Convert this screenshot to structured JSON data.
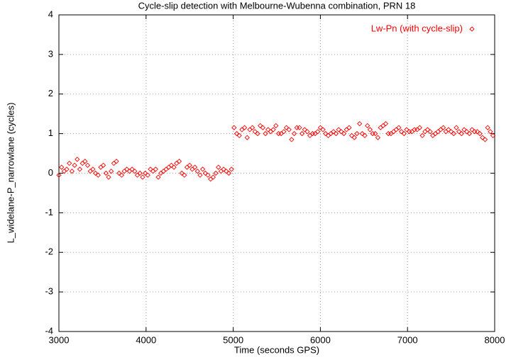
{
  "chart_data": {
    "type": "scatter",
    "title": "Cycle-slip detection with Melbourne-Wubenna combination, PRN 18",
    "xlabel": "Time (seconds GPS)",
    "ylabel": "L_widelane-P_narrowlane (cycles)",
    "x": [
      3000,
      3030,
      3060,
      3090,
      3120,
      3150,
      3180,
      3210,
      3240,
      3270,
      3300,
      3330,
      3360,
      3390,
      3420,
      3450,
      3480,
      3510,
      3540,
      3570,
      3600,
      3630,
      3660,
      3690,
      3720,
      3750,
      3780,
      3810,
      3840,
      3870,
      3900,
      3930,
      3960,
      3990,
      4020,
      4050,
      4080,
      4110,
      4140,
      4170,
      4200,
      4230,
      4260,
      4290,
      4320,
      4350,
      4380,
      4410,
      4440,
      4470,
      4500,
      4530,
      4560,
      4590,
      4620,
      4650,
      4680,
      4710,
      4740,
      4770,
      4800,
      4830,
      4860,
      4890,
      4920,
      4950,
      4980,
      5010,
      5040,
      5070,
      5100,
      5130,
      5160,
      5190,
      5220,
      5250,
      5280,
      5310,
      5340,
      5370,
      5400,
      5430,
      5460,
      5490,
      5520,
      5550,
      5580,
      5610,
      5640,
      5670,
      5700,
      5730,
      5760,
      5790,
      5820,
      5850,
      5880,
      5910,
      5940,
      5970,
      6000,
      6030,
      6060,
      6090,
      6120,
      6150,
      6180,
      6210,
      6240,
      6270,
      6300,
      6330,
      6360,
      6390,
      6420,
      6450,
      6480,
      6510,
      6540,
      6570,
      6600,
      6630,
      6660,
      6690,
      6720,
      6750,
      6780,
      6810,
      6840,
      6870,
      6900,
      6930,
      6960,
      6990,
      7020,
      7050,
      7080,
      7110,
      7140,
      7170,
      7200,
      7230,
      7260,
      7290,
      7320,
      7350,
      7380,
      7410,
      7440,
      7470,
      7500,
      7530,
      7560,
      7590,
      7620,
      7650,
      7680,
      7710,
      7740,
      7770,
      7800,
      7830,
      7860,
      7890,
      7920,
      7950,
      7980
    ],
    "series": [
      {
        "name": "Lw-Pn (with cycle-slip)",
        "color": "#ff0000",
        "values": [
          -0.05,
          0.15,
          0.05,
          0.1,
          0.25,
          0.05,
          0.2,
          0.35,
          0.1,
          0.25,
          0.3,
          0.2,
          0.05,
          0.1,
          0.0,
          -0.05,
          0.15,
          0.2,
          0.0,
          -0.1,
          0.05,
          0.25,
          0.3,
          0.0,
          -0.05,
          0.05,
          0.1,
          0.05,
          0.1,
          0.05,
          -0.05,
          0.0,
          -0.1,
          0.0,
          -0.05,
          0.1,
          0.05,
          0.1,
          -0.1,
          0.0,
          0.05,
          0.1,
          0.15,
          0.2,
          0.15,
          0.25,
          0.3,
          0.0,
          -0.05,
          0.15,
          0.2,
          0.1,
          0.15,
          0.05,
          -0.05,
          0.1,
          0.0,
          -0.05,
          -0.15,
          -0.1,
          0.0,
          0.15,
          0.05,
          0.1,
          0.05,
          0.0,
          0.1,
          1.15,
          1.0,
          0.95,
          1.1,
          1.15,
          0.9,
          1.1,
          1.15,
          1.05,
          1.0,
          1.2,
          1.15,
          1.0,
          1.1,
          1.05,
          1.1,
          1.2,
          1.0,
          1.0,
          1.05,
          1.15,
          1.1,
          0.85,
          1.0,
          1.15,
          1.15,
          1.0,
          1.1,
          1.05,
          0.95,
          1.0,
          1.0,
          1.05,
          1.15,
          1.1,
          1.0,
          0.95,
          1.0,
          1.05,
          1.0,
          1.1,
          1.05,
          1.0,
          1.1,
          1.15,
          0.95,
          0.9,
          1.0,
          1.25,
          1.0,
          0.95,
          1.2,
          1.1,
          1.0,
          1.0,
          0.9,
          1.15,
          1.2,
          1.25,
          1.0,
          1.0,
          1.05,
          1.1,
          1.15,
          1.05,
          1.0,
          1.1,
          1.05,
          1.05,
          1.1,
          1.1,
          1.15,
          0.95,
          1.05,
          1.1,
          1.05,
          0.95,
          1.0,
          1.05,
          1.1,
          1.15,
          1.05,
          1.1,
          1.05,
          1.0,
          1.15,
          1.05,
          1.0,
          1.1,
          1.05,
          1.0,
          1.1,
          1.05,
          1.05,
          1.0,
          0.9,
          0.85,
          1.15,
          1.05,
          0.95
        ]
      }
    ],
    "xlim": [
      3000,
      8000
    ],
    "xticks": [
      3000,
      4000,
      5000,
      6000,
      7000,
      8000
    ],
    "ylim": [
      -4,
      4
    ],
    "yticks": [
      -4,
      -3,
      -2,
      -1,
      0,
      1,
      2,
      3,
      4
    ],
    "grid": true,
    "legend": "top-right"
  }
}
